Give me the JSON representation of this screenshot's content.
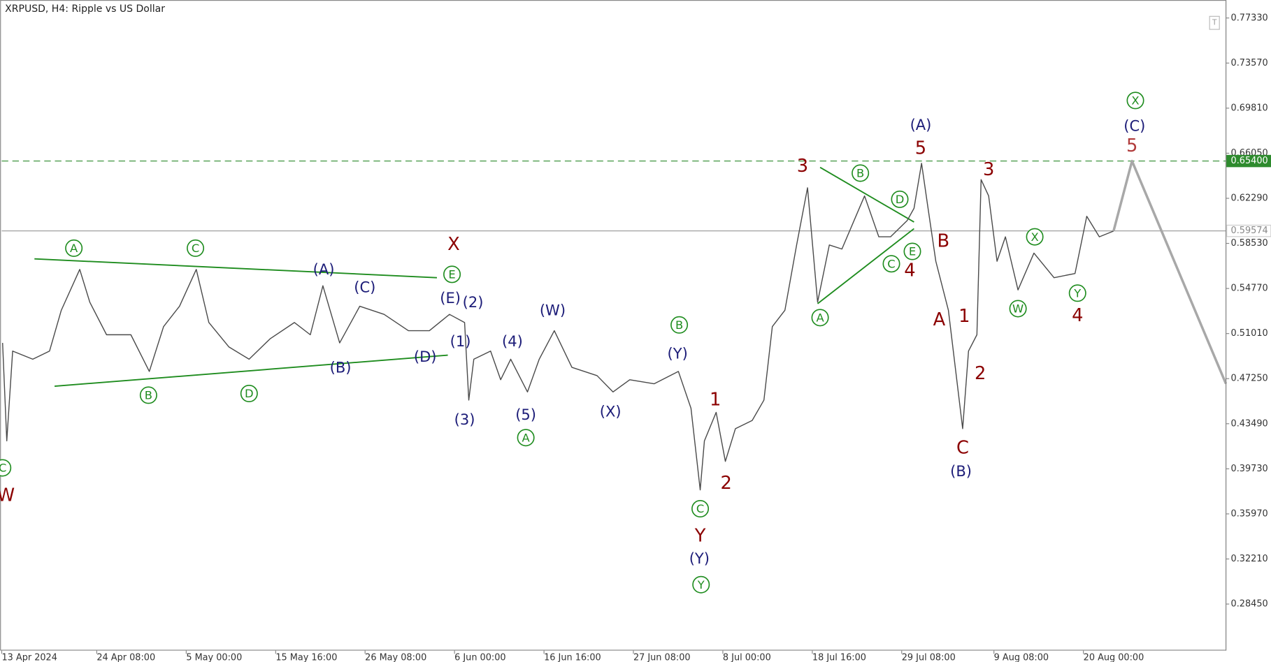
{
  "chart_data": {
    "type": "line",
    "title": "XRPUSD, H4:  Ripple vs US Dollar",
    "xlim": [
      0,
      146.0
    ],
    "ylim": [
      0.2457,
      0.7883
    ],
    "xticks": [
      {
        "value": 0,
        "label": "13 Apr 2024"
      },
      {
        "value": 11.33,
        "label": "24 Apr 08:00"
      },
      {
        "value": 22,
        "label": "5 May 00:00"
      },
      {
        "value": 32.67,
        "label": "15 May 16:00"
      },
      {
        "value": 43.33,
        "label": "26 May 08:00"
      },
      {
        "value": 54,
        "label": "6 Jun 00:00"
      },
      {
        "value": 64.67,
        "label": "16 Jun 16:00"
      },
      {
        "value": 75.33,
        "label": "27 Jun 08:00"
      },
      {
        "value": 86,
        "label": "8 Jul 00:00"
      },
      {
        "value": 96.67,
        "label": "18 Jul 16:00"
      },
      {
        "value": 107.33,
        "label": "29 Jul 08:00"
      },
      {
        "value": 118.33,
        "label": "9 Aug 08:00"
      },
      {
        "value": 129,
        "label": "20 Aug 00:00"
      }
    ],
    "yticks": [
      {
        "value": 0.7733,
        "label": "0.77330"
      },
      {
        "value": 0.7357,
        "label": "0.73570"
      },
      {
        "value": 0.6981,
        "label": "0.69810"
      },
      {
        "value": 0.6605,
        "label": "0.66050"
      },
      {
        "value": 0.6229,
        "label": "0.62290"
      },
      {
        "value": 0.5853,
        "label": "0.58530"
      },
      {
        "value": 0.5477,
        "label": "0.54770"
      },
      {
        "value": 0.5101,
        "label": "0.51010"
      },
      {
        "value": 0.4725,
        "label": "0.47250"
      },
      {
        "value": 0.4349,
        "label": "0.43490"
      },
      {
        "value": 0.3973,
        "label": "0.39730"
      },
      {
        "value": 0.3597,
        "label": "0.35970"
      },
      {
        "value": 0.3221,
        "label": "0.32210"
      },
      {
        "value": 0.2845,
        "label": "0.28450"
      }
    ],
    "x": [
      0.1,
      0.6,
      1.3,
      3.7,
      5.7,
      7.1,
      9.3,
      10.5,
      12.5,
      15.4,
      17.6,
      19.3,
      21.2,
      23.2,
      24.7,
      27.1,
      29.5,
      32.0,
      34.9,
      36.8,
      38.3,
      40.3,
      42.7,
      45.6,
      48.5,
      51.0,
      53.4,
      55.2,
      55.7,
      56.3,
      58.3,
      59.5,
      60.7,
      62.7,
      64.1,
      65.9,
      68.0,
      71.0,
      72.9,
      74.9,
      77.8,
      80.7,
      82.2,
      83.3,
      83.8,
      85.2,
      86.3,
      87.5,
      89.5,
      90.9,
      91.9,
      93.4,
      94.8,
      96.1,
      97.3,
      98.7,
      100.2,
      102.9,
      104.6,
      106.0,
      108.0,
      108.8,
      109.7,
      110.4,
      111.4,
      112.9,
      114.6,
      115.3,
      116.3,
      116.8,
      117.7,
      118.7,
      119.7,
      121.2,
      123.1,
      125.5,
      128.0,
      129.4,
      130.9,
      132.6,
      134.8,
      146.0
    ],
    "series": [
      {
        "color": "#4a4a4a",
        "values": [
          0.5023,
          0.4206,
          0.4955,
          0.4887,
          0.4955,
          0.5295,
          0.5636,
          0.5363,
          0.5091,
          0.5091,
          0.4785,
          0.5159,
          0.5329,
          0.5636,
          0.5193,
          0.4989,
          0.4887,
          0.5057,
          0.5193,
          0.5091,
          0.55,
          0.5023,
          0.5329,
          0.5261,
          0.5125,
          0.5125,
          0.5261,
          0.5193,
          0.4546,
          0.4887,
          0.4955,
          0.4716,
          0.4887,
          0.4614,
          0.4887,
          0.5125,
          0.4819,
          0.475,
          0.4614,
          0.4716,
          0.4682,
          0.4785,
          0.4478,
          0.3797,
          0.4206,
          0.4444,
          0.4035,
          0.4308,
          0.4376,
          0.4546,
          0.5159,
          0.5295,
          0.584,
          0.6317,
          0.5363,
          0.584,
          0.5806,
          0.6249,
          0.5908,
          0.5908,
          0.6045,
          0.6146,
          0.6521,
          0.6181,
          0.5704,
          0.5295,
          0.4308,
          0.4955,
          0.5091,
          0.6385,
          0.6249,
          0.5704,
          0.5908,
          0.5465,
          0.5772,
          0.5567,
          0.5602,
          0.6079,
          0.5908,
          0.5956,
          null,
          null
        ]
      },
      {
        "color": "#a8a8a8",
        "values": [
          null,
          null,
          null,
          null,
          null,
          null,
          null,
          null,
          null,
          null,
          null,
          null,
          null,
          null,
          null,
          null,
          null,
          null,
          null,
          null,
          null,
          null,
          null,
          null,
          null,
          null,
          null,
          null,
          null,
          null,
          null,
          null,
          null,
          null,
          null,
          null,
          null,
          null,
          null,
          null,
          null,
          null,
          null,
          null,
          null,
          null,
          null,
          null,
          null,
          null,
          null,
          null,
          null,
          null,
          null,
          null,
          null,
          null,
          null,
          null,
          null,
          null,
          null,
          null,
          null,
          null,
          null,
          null,
          null,
          null,
          null,
          null,
          null,
          null,
          null,
          null,
          null,
          null,
          null,
          0.5956,
          0.654,
          0.4682
        ]
      }
    ],
    "levels": [
      {
        "value": 0.654,
        "label": "0.65400",
        "color": "#2e8b2e",
        "dashed": true
      },
      {
        "value": 0.59574,
        "label": "0.59574",
        "color": "#a0a0a0",
        "dashed": false
      }
    ],
    "trendlines": [
      {
        "color": "#1e8c1e",
        "x": [
          3.9,
          51.9
        ],
        "y": [
          0.5724,
          0.5567
        ]
      },
      {
        "color": "#1e8c1e",
        "x": [
          6.3,
          53.2
        ],
        "y": [
          0.4662,
          0.4921
        ]
      },
      {
        "color": "#1e8c1e",
        "x": [
          97.6,
          108.8
        ],
        "y": [
          0.6487,
          0.6031
        ]
      },
      {
        "color": "#1e8c1e",
        "x": [
          97.3,
          108.8
        ],
        "y": [
          0.535,
          0.5976
        ]
      }
    ],
    "annotations": [
      {
        "text": "A",
        "x": 8.6,
        "y": 0.5813,
        "color": "#1e8c1e",
        "circled": true
      },
      {
        "text": "C",
        "x": 23.1,
        "y": 0.5813,
        "color": "#1e8c1e",
        "circled": true
      },
      {
        "text": "C",
        "x": 0.1,
        "y": 0.3981,
        "color": "#1e8c1e",
        "circled": true
      },
      {
        "text": "B",
        "x": 17.5,
        "y": 0.4587,
        "color": "#1e8c1e",
        "circled": true
      },
      {
        "text": "D",
        "x": 29.5,
        "y": 0.4601,
        "color": "#1e8c1e",
        "circled": true
      },
      {
        "text": "E",
        "x": 53.7,
        "y": 0.5595,
        "color": "#1e8c1e",
        "circled": true
      },
      {
        "text": "B",
        "x": 80.8,
        "y": 0.5173,
        "color": "#1e8c1e",
        "circled": true
      },
      {
        "text": "A",
        "x": 62.5,
        "y": 0.4233,
        "color": "#1e8c1e",
        "circled": true
      },
      {
        "text": "C",
        "x": 83.3,
        "y": 0.364,
        "color": "#1e8c1e",
        "circled": true
      },
      {
        "text": "Y",
        "x": 83.4,
        "y": 0.3007,
        "color": "#1e8c1e",
        "circled": true
      },
      {
        "text": "X",
        "x": 135.2,
        "y": 0.7045,
        "color": "#1e8c1e",
        "circled": true
      },
      {
        "text": "B",
        "x": 102.4,
        "y": 0.6439,
        "color": "#1e8c1e",
        "circled": true
      },
      {
        "text": "D",
        "x": 107.1,
        "y": 0.6221,
        "color": "#1e8c1e",
        "circled": true
      },
      {
        "text": "E",
        "x": 108.6,
        "y": 0.5786,
        "color": "#1e8c1e",
        "circled": true
      },
      {
        "text": "C",
        "x": 106.1,
        "y": 0.5683,
        "color": "#1e8c1e",
        "circled": true
      },
      {
        "text": "A",
        "x": 97.6,
        "y": 0.5234,
        "color": "#1e8c1e",
        "circled": true
      },
      {
        "text": "X",
        "x": 123.2,
        "y": 0.5908,
        "color": "#1e8c1e",
        "circled": true
      },
      {
        "text": "W",
        "x": 121.2,
        "y": 0.5309,
        "color": "#1e8c1e",
        "circled": true
      },
      {
        "text": "Y",
        "x": 128.3,
        "y": 0.5438,
        "color": "#1e8c1e",
        "circled": true
      },
      {
        "text": "(A)",
        "x": 38.4,
        "y": 0.5636,
        "color": "#1c1c78",
        "circled": false
      },
      {
        "text": "(C)",
        "x": 43.3,
        "y": 0.5486,
        "color": "#1c1c78",
        "circled": false
      },
      {
        "text": "(B)",
        "x": 40.4,
        "y": 0.4819,
        "color": "#1c1c78",
        "circled": false
      },
      {
        "text": "(D)",
        "x": 50.5,
        "y": 0.4907,
        "color": "#1c1c78",
        "circled": false
      },
      {
        "text": "(E)",
        "x": 53.5,
        "y": 0.5397,
        "color": "#1c1c78",
        "circled": false
      },
      {
        "text": "(2)",
        "x": 56.2,
        "y": 0.5363,
        "color": "#1c1c78",
        "circled": false
      },
      {
        "text": "(1)",
        "x": 54.7,
        "y": 0.5036,
        "color": "#1c1c78",
        "circled": false
      },
      {
        "text": "(3)",
        "x": 55.2,
        "y": 0.4383,
        "color": "#1c1c78",
        "circled": false
      },
      {
        "text": "(4)",
        "x": 60.9,
        "y": 0.5036,
        "color": "#1c1c78",
        "circled": false
      },
      {
        "text": "(5)",
        "x": 62.5,
        "y": 0.4424,
        "color": "#1c1c78",
        "circled": false
      },
      {
        "text": "(W)",
        "x": 65.7,
        "y": 0.5295,
        "color": "#1c1c78",
        "circled": false
      },
      {
        "text": "(X)",
        "x": 72.6,
        "y": 0.4451,
        "color": "#1c1c78",
        "circled": false
      },
      {
        "text": "(Y)",
        "x": 80.6,
        "y": 0.4934,
        "color": "#1c1c78",
        "circled": false
      },
      {
        "text": "(Y)",
        "x": 83.2,
        "y": 0.3225,
        "color": "#1c1c78",
        "circled": false
      },
      {
        "text": "(A)",
        "x": 109.6,
        "y": 0.6841,
        "color": "#1c1c78",
        "circled": false
      },
      {
        "text": "(B)",
        "x": 114.4,
        "y": 0.3954,
        "color": "#1c1c78",
        "circled": false
      },
      {
        "text": "(C)",
        "x": 135.1,
        "y": 0.6834,
        "color": "#1c1c78",
        "circled": false
      },
      {
        "text": "X",
        "x": 53.9,
        "y": 0.5847,
        "color": "#8b0000",
        "circled": false
      },
      {
        "text": "W",
        "x": 0.5,
        "y": 0.3756,
        "color": "#8b0000",
        "circled": false
      },
      {
        "text": "1",
        "x": 85.1,
        "y": 0.4553,
        "color": "#8b0000",
        "circled": false
      },
      {
        "text": "2",
        "x": 86.4,
        "y": 0.3858,
        "color": "#8b0000",
        "circled": false
      },
      {
        "text": "Y",
        "x": 83.3,
        "y": 0.3416,
        "color": "#8b0000",
        "circled": false
      },
      {
        "text": "3",
        "x": 95.5,
        "y": 0.6501,
        "color": "#8b0000",
        "circled": false
      },
      {
        "text": "5",
        "x": 109.6,
        "y": 0.665,
        "color": "#8b0000",
        "circled": false
      },
      {
        "text": "B",
        "x": 112.3,
        "y": 0.5874,
        "color": "#8b0000",
        "circled": false
      },
      {
        "text": "4",
        "x": 108.3,
        "y": 0.5629,
        "color": "#8b0000",
        "circled": false
      },
      {
        "text": "A",
        "x": 111.8,
        "y": 0.522,
        "color": "#8b0000",
        "circled": false
      },
      {
        "text": "1",
        "x": 114.8,
        "y": 0.5248,
        "color": "#8b0000",
        "circled": false
      },
      {
        "text": "2",
        "x": 116.7,
        "y": 0.4771,
        "color": "#8b0000",
        "circled": false
      },
      {
        "text": "C",
        "x": 114.6,
        "y": 0.4151,
        "color": "#8b0000",
        "circled": false
      },
      {
        "text": "3",
        "x": 117.7,
        "y": 0.6473,
        "color": "#8b0000",
        "circled": false
      },
      {
        "text": "4",
        "x": 128.3,
        "y": 0.5254,
        "color": "#8b0000",
        "circled": false
      },
      {
        "text": "5",
        "x": 134.8,
        "y": 0.6671,
        "color": "#b03a3a",
        "circled": false
      }
    ]
  }
}
